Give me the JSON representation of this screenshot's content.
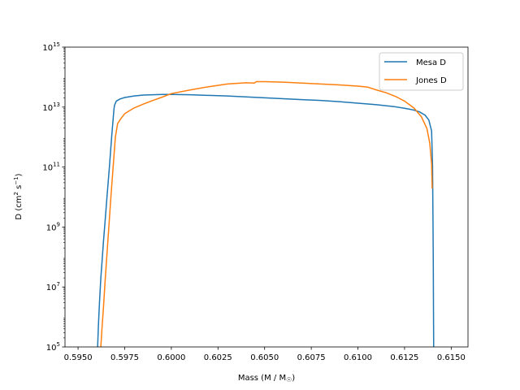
{
  "chart_data": {
    "type": "line",
    "xlabel": "Mass (M / M",
    "xlabel_suffix": ")",
    "xlabel_symbol": "☉",
    "ylabel_prefix": "D (cm",
    "ylabel_suffix": ")",
    "ylabel_parts": {
      "cm_exp": "2",
      "s": " s",
      "s_exp": "−1"
    },
    "xlim": [
      0.5943,
      0.6159
    ],
    "ylim_log10": [
      5,
      15
    ],
    "yscale": "log",
    "x_ticks": [
      0.595,
      0.5975,
      0.6,
      0.6025,
      0.605,
      0.6075,
      0.61,
      0.6125,
      0.615
    ],
    "x_tick_labels": [
      "0.5950",
      "0.5975",
      "0.6000",
      "0.6025",
      "0.6050",
      "0.6075",
      "0.6100",
      "0.6125",
      "0.6150"
    ],
    "y_tick_exponents": [
      5,
      7,
      9,
      11,
      13,
      15
    ],
    "y_tick_base": "10",
    "legend_position": "top-right",
    "grid": false,
    "series": [
      {
        "name": "Mesa D",
        "color": "#1f77b4",
        "x": [
          0.59605,
          0.59609,
          0.59615,
          0.59622,
          0.59628,
          0.59636,
          0.59645,
          0.59655,
          0.59668,
          0.5968,
          0.59692,
          0.59695,
          0.59698,
          0.59705,
          0.59725,
          0.5975,
          0.598,
          0.5985,
          0.599,
          0.5995,
          0.6,
          0.601,
          0.602,
          0.603,
          0.604,
          0.605,
          0.606,
          0.607,
          0.608,
          0.609,
          0.61,
          0.611,
          0.612,
          0.6125,
          0.613,
          0.6133,
          0.6136,
          0.6138,
          0.61395,
          0.614,
          0.61402,
          0.61404,
          0.61405,
          0.61406
        ],
        "log10_y": [
          5.0,
          5.7,
          6.5,
          7.3,
          7.8,
          8.5,
          9.2,
          10.0,
          11.0,
          12.0,
          12.9,
          13.05,
          13.1,
          13.2,
          13.27,
          13.32,
          13.37,
          13.4,
          13.41,
          13.42,
          13.42,
          13.41,
          13.39,
          13.37,
          13.34,
          13.31,
          13.28,
          13.25,
          13.22,
          13.18,
          13.13,
          13.08,
          13.01,
          12.96,
          12.9,
          12.84,
          12.73,
          12.57,
          12.2,
          11.0,
          9.5,
          7.8,
          6.3,
          5.0
        ]
      },
      {
        "name": "Jones D",
        "color": "#ff7f0e",
        "x": [
          0.59622,
          0.59628,
          0.59636,
          0.59645,
          0.59655,
          0.59665,
          0.59676,
          0.59688,
          0.597,
          0.59712,
          0.5973,
          0.5975,
          0.598,
          0.5985,
          0.599,
          0.5995,
          0.6,
          0.601,
          0.602,
          0.603,
          0.604,
          0.60445,
          0.60455,
          0.605,
          0.606,
          0.607,
          0.608,
          0.609,
          0.61,
          0.6105,
          0.611,
          0.6115,
          0.612,
          0.6125,
          0.613,
          0.6134,
          0.6137,
          0.61385,
          0.61395,
          0.61398
        ],
        "log10_y": [
          5.0,
          5.6,
          6.3,
          7.2,
          8.1,
          9.0,
          10.0,
          11.0,
          12.0,
          12.45,
          12.62,
          12.78,
          12.97,
          13.1,
          13.22,
          13.33,
          13.45,
          13.57,
          13.68,
          13.77,
          13.81,
          13.8,
          13.85,
          13.85,
          13.83,
          13.8,
          13.77,
          13.74,
          13.7,
          13.67,
          13.57,
          13.48,
          13.36,
          13.2,
          12.97,
          12.68,
          12.28,
          11.8,
          11.1,
          10.3
        ]
      }
    ]
  }
}
